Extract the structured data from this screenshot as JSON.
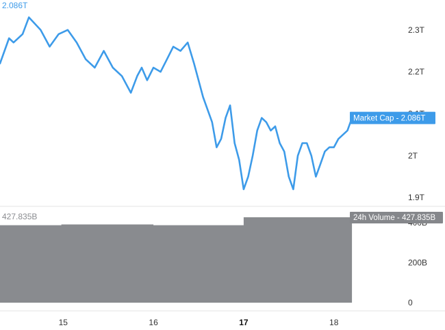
{
  "corner_labels": {
    "market_cap": "2.086T",
    "volume": "427.835B"
  },
  "badges": {
    "market_cap": "Market Cap - 2.086T",
    "volume": "24h Volume - 427.835B"
  },
  "colors": {
    "line": "#3d9be9",
    "badge": "#3d9be9",
    "volume_fill": "#898b8f",
    "volume_badge": "#85878b",
    "gridline": "#d9d9d9",
    "tick_text": "#333333"
  },
  "chart_data": [
    {
      "type": "line",
      "name": "Market Cap",
      "x_ticks": [
        {
          "label": "15",
          "x": 15
        },
        {
          "label": "16",
          "x": 16
        },
        {
          "label": "17",
          "x": 17,
          "bold": true
        },
        {
          "label": "18",
          "x": 18
        }
      ],
      "y_ticks": [
        {
          "label": "2.3T",
          "value": 2.3
        },
        {
          "label": "2.2T",
          "value": 2.2
        },
        {
          "label": "2.1T",
          "value": 2.1
        },
        {
          "label": "2T",
          "value": 2.0
        },
        {
          "label": "1.9T",
          "value": 1.9
        }
      ],
      "xlim": [
        14.3,
        18.7
      ],
      "ylim": [
        1.889,
        2.342
      ],
      "x": [
        14.3,
        14.4,
        14.45,
        14.55,
        14.62,
        14.75,
        14.85,
        14.95,
        15.05,
        15.15,
        15.25,
        15.35,
        15.45,
        15.55,
        15.65,
        15.75,
        15.82,
        15.87,
        15.93,
        16.0,
        16.08,
        16.15,
        16.22,
        16.3,
        16.38,
        16.45,
        16.5,
        16.55,
        16.6,
        16.65,
        16.7,
        16.75,
        16.8,
        16.85,
        16.9,
        16.95,
        17.0,
        17.05,
        17.1,
        17.15,
        17.2,
        17.25,
        17.3,
        17.35,
        17.4,
        17.45,
        17.5,
        17.55,
        17.6,
        17.65,
        17.7,
        17.75,
        17.8,
        17.85,
        17.9,
        17.95,
        18.0,
        18.05,
        18.1,
        18.15,
        18.2
      ],
      "values": [
        2.22,
        2.28,
        2.27,
        2.29,
        2.33,
        2.3,
        2.26,
        2.29,
        2.3,
        2.27,
        2.23,
        2.21,
        2.25,
        2.21,
        2.19,
        2.15,
        2.19,
        2.21,
        2.18,
        2.21,
        2.2,
        2.23,
        2.26,
        2.25,
        2.27,
        2.22,
        2.18,
        2.14,
        2.11,
        2.08,
        2.02,
        2.04,
        2.09,
        2.12,
        2.03,
        1.99,
        1.92,
        1.95,
        2.0,
        2.06,
        2.09,
        2.08,
        2.06,
        2.07,
        2.03,
        2.01,
        1.95,
        1.92,
        2.0,
        2.03,
        2.03,
        2.0,
        1.95,
        1.98,
        2.01,
        2.02,
        2.02,
        2.04,
        2.05,
        2.06,
        2.09
      ]
    },
    {
      "type": "area",
      "name": "24h Volume",
      "y_ticks": [
        {
          "label": "400B",
          "value": 400
        },
        {
          "label": "200B",
          "value": 200
        },
        {
          "label": "0",
          "value": 0
        }
      ],
      "ylim": [
        0,
        427.835
      ],
      "x": [
        14.3,
        14.98,
        14.98,
        16.0,
        16.0,
        17.0,
        17.0,
        18.2
      ],
      "values": [
        388,
        388,
        392,
        392,
        388,
        388,
        427.835,
        427.835
      ]
    }
  ]
}
